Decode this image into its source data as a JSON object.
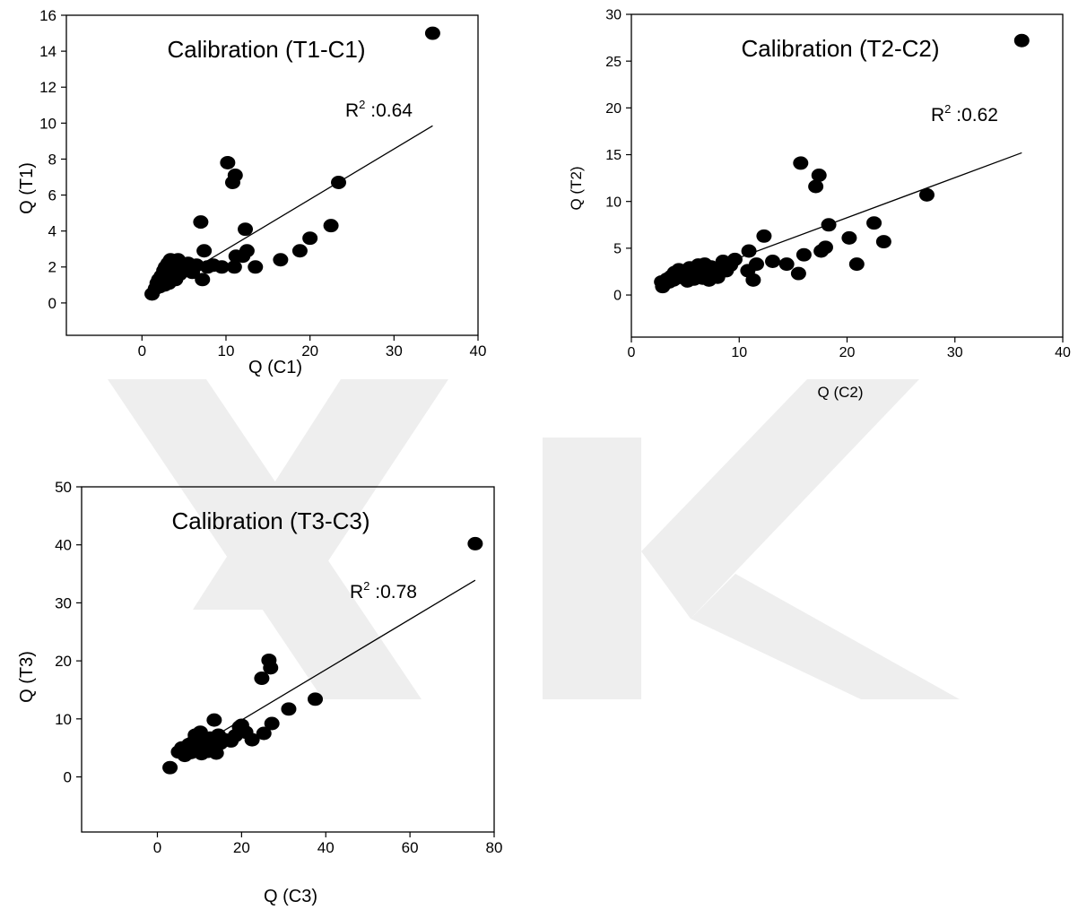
{
  "colors": {
    "marker": "#000000",
    "line": "#000000",
    "axis": "#000000",
    "watermark": "#eeeeee"
  },
  "chart_data": [
    {
      "type": "scatter",
      "title": "Calibration (T1-C1)",
      "xlabel": "Q (C1)",
      "ylabel": "Q (T1)",
      "xlim": [
        -9,
        40
      ],
      "ylim": [
        -1.8,
        16
      ],
      "xticks": [
        0,
        10,
        20,
        30,
        40
      ],
      "yticks": [
        0,
        2,
        4,
        6,
        8,
        10,
        12,
        14,
        16
      ],
      "annotation": {
        "r2_label": "R",
        "r2_sup": "2",
        "r2_value": " :0.64"
      },
      "trendline": {
        "x": [
          1.2,
          34.6
        ],
        "y": [
          0.5,
          9.85
        ]
      },
      "points": [
        [
          1.2,
          0.5
        ],
        [
          1.6,
          0.8
        ],
        [
          1.8,
          1.1
        ],
        [
          2.0,
          1.3
        ],
        [
          2.1,
          0.9
        ],
        [
          2.3,
          1.5
        ],
        [
          2.4,
          1.2
        ],
        [
          2.6,
          1.8
        ],
        [
          2.7,
          1.0
        ],
        [
          2.8,
          2.0
        ],
        [
          3.0,
          1.4
        ],
        [
          3.1,
          2.2
        ],
        [
          3.2,
          1.1
        ],
        [
          3.3,
          1.7
        ],
        [
          3.4,
          2.4
        ],
        [
          3.5,
          1.3
        ],
        [
          3.6,
          2.0
        ],
        [
          3.8,
          1.6
        ],
        [
          3.9,
          2.2
        ],
        [
          4.0,
          1.3
        ],
        [
          4.2,
          1.9
        ],
        [
          4.3,
          2.4
        ],
        [
          4.5,
          1.6
        ],
        [
          4.8,
          2.1
        ],
        [
          5.2,
          1.8
        ],
        [
          5.5,
          2.2
        ],
        [
          6.0,
          1.7
        ],
        [
          6.5,
          2.1
        ],
        [
          7.0,
          4.5
        ],
        [
          7.2,
          1.3
        ],
        [
          7.4,
          2.9
        ],
        [
          7.8,
          2.0
        ],
        [
          8.5,
          2.1
        ],
        [
          9.5,
          2.0
        ],
        [
          10.2,
          7.8
        ],
        [
          10.8,
          6.7
        ],
        [
          11.1,
          7.1
        ],
        [
          11.0,
          2.0
        ],
        [
          11.2,
          2.6
        ],
        [
          12.0,
          2.6
        ],
        [
          12.3,
          4.1
        ],
        [
          12.5,
          2.9
        ],
        [
          13.5,
          2.0
        ],
        [
          16.5,
          2.4
        ],
        [
          18.8,
          2.9
        ],
        [
          20.0,
          3.6
        ],
        [
          22.5,
          4.3
        ],
        [
          23.4,
          6.7
        ],
        [
          34.6,
          15.0
        ]
      ]
    },
    {
      "type": "scatter",
      "title": "Calibration (T2-C2)",
      "xlabel": "Q (C2)",
      "ylabel": "Q (T2)",
      "xlim": [
        0,
        40
      ],
      "ylim": [
        -4.5,
        30
      ],
      "xticks": [
        0,
        10,
        20,
        30,
        40
      ],
      "yticks": [
        0,
        5,
        10,
        15,
        20,
        25,
        30
      ],
      "annotation": {
        "r2_label": "R",
        "r2_sup": "2",
        "r2_value": " :0.62"
      },
      "trendline": {
        "x": [
          2.8,
          36.2
        ],
        "y": [
          0.9,
          15.2
        ]
      },
      "points": [
        [
          2.8,
          1.4
        ],
        [
          2.9,
          0.9
        ],
        [
          3.1,
          1.2
        ],
        [
          3.3,
          1.7
        ],
        [
          3.5,
          1.4
        ],
        [
          3.7,
          2.0
        ],
        [
          3.9,
          1.6
        ],
        [
          4.0,
          2.4
        ],
        [
          4.2,
          1.8
        ],
        [
          4.4,
          2.7
        ],
        [
          4.6,
          2.2
        ],
        [
          4.8,
          1.9
        ],
        [
          5.0,
          2.6
        ],
        [
          5.2,
          1.5
        ],
        [
          5.4,
          2.9
        ],
        [
          5.6,
          2.3
        ],
        [
          5.8,
          1.7
        ],
        [
          6.0,
          2.8
        ],
        [
          6.2,
          3.2
        ],
        [
          6.4,
          2.1
        ],
        [
          6.6,
          1.8
        ],
        [
          6.8,
          3.3
        ],
        [
          7.0,
          2.5
        ],
        [
          7.2,
          1.6
        ],
        [
          7.4,
          3.0
        ],
        [
          7.6,
          2.6
        ],
        [
          7.8,
          2.2
        ],
        [
          8.0,
          1.9
        ],
        [
          8.2,
          2.8
        ],
        [
          8.5,
          3.6
        ],
        [
          8.8,
          2.6
        ],
        [
          9.2,
          3.2
        ],
        [
          9.6,
          3.8
        ],
        [
          10.8,
          2.6
        ],
        [
          10.9,
          4.7
        ],
        [
          11.3,
          1.6
        ],
        [
          11.6,
          3.3
        ],
        [
          12.3,
          6.3
        ],
        [
          13.1,
          3.6
        ],
        [
          14.4,
          3.3
        ],
        [
          15.5,
          2.3
        ],
        [
          15.7,
          14.1
        ],
        [
          16.0,
          4.3
        ],
        [
          17.1,
          11.6
        ],
        [
          17.4,
          12.8
        ],
        [
          17.6,
          4.7
        ],
        [
          18.0,
          5.1
        ],
        [
          18.3,
          7.5
        ],
        [
          20.2,
          6.1
        ],
        [
          20.9,
          3.3
        ],
        [
          22.5,
          7.7
        ],
        [
          23.4,
          5.7
        ],
        [
          27.4,
          10.7
        ],
        [
          36.2,
          27.2
        ]
      ]
    },
    {
      "type": "scatter",
      "title": "Calibration (T3-C3)",
      "xlabel": "Q (C3)",
      "ylabel": "Q (T3)",
      "xlim": [
        -18,
        80
      ],
      "ylim": [
        -9.5,
        50
      ],
      "xticks": [
        0,
        20,
        40,
        60,
        80
      ],
      "yticks": [
        0,
        10,
        20,
        30,
        40,
        50
      ],
      "annotation": {
        "r2_label": "R",
        "r2_sup": "2",
        "r2_value": " :0.78"
      },
      "trendline": {
        "x": [
          5.5,
          75.5
        ],
        "y": [
          3.5,
          33.9
        ]
      },
      "points": [
        [
          3.0,
          1.6
        ],
        [
          5.0,
          4.3
        ],
        [
          5.8,
          5.0
        ],
        [
          6.5,
          3.7
        ],
        [
          7.0,
          4.8
        ],
        [
          7.5,
          5.6
        ],
        [
          8.0,
          4.2
        ],
        [
          8.5,
          6.0
        ],
        [
          9.0,
          7.2
        ],
        [
          9.2,
          4.5
        ],
        [
          9.8,
          5.3
        ],
        [
          10.2,
          7.7
        ],
        [
          10.5,
          4.0
        ],
        [
          11.0,
          6.4
        ],
        [
          11.5,
          5.0
        ],
        [
          12.0,
          4.4
        ],
        [
          12.5,
          6.7
        ],
        [
          13.0,
          5.4
        ],
        [
          13.5,
          9.8
        ],
        [
          14.0,
          4.1
        ],
        [
          14.5,
          7.2
        ],
        [
          15.0,
          5.8
        ],
        [
          16.0,
          6.4
        ],
        [
          17.5,
          6.2
        ],
        [
          18.5,
          7.1
        ],
        [
          19.5,
          8.6
        ],
        [
          20.0,
          8.9
        ],
        [
          21.0,
          7.7
        ],
        [
          22.5,
          6.4
        ],
        [
          24.8,
          17.0
        ],
        [
          25.3,
          7.5
        ],
        [
          26.5,
          20.1
        ],
        [
          26.9,
          18.8
        ],
        [
          27.2,
          9.2
        ],
        [
          31.2,
          11.7
        ],
        [
          37.5,
          13.4
        ],
        [
          75.5,
          40.2
        ]
      ]
    }
  ]
}
